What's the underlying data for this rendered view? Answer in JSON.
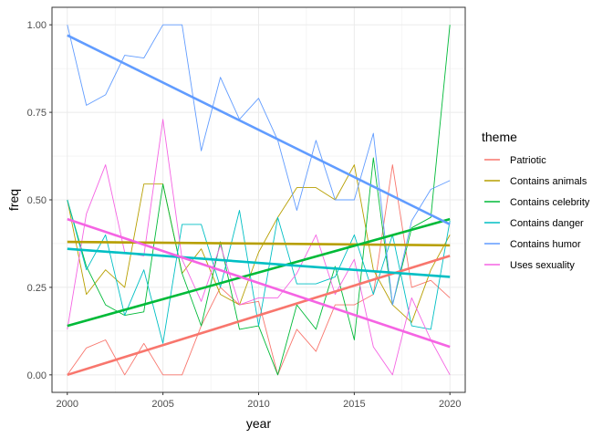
{
  "chart_data": {
    "type": "line",
    "xlabel": "year",
    "ylabel": "freq",
    "xlim": [
      1999.2,
      2020.8
    ],
    "ylim": [
      -0.05,
      1.05
    ],
    "x_ticks": [
      2000,
      2005,
      2010,
      2015,
      2020
    ],
    "x_tick_labels": [
      "2000",
      "2005",
      "2010",
      "2015",
      "2020"
    ],
    "y_ticks": [
      0.0,
      0.25,
      0.5,
      0.75,
      1.0
    ],
    "y_tick_labels": [
      "0.00",
      "0.25",
      "0.50",
      "0.75",
      "1.00"
    ],
    "grid": true,
    "legend_title": "theme",
    "legend_position": "right",
    "x": [
      2000,
      2001,
      2002,
      2003,
      2004,
      2005,
      2006,
      2007,
      2008,
      2009,
      2010,
      2011,
      2012,
      2013,
      2014,
      2015,
      2016,
      2017,
      2018,
      2019,
      2020
    ],
    "series": [
      {
        "name": "Patriotic",
        "color": "#F8766D",
        "values": [
          0.0,
          0.077,
          0.1,
          0.0,
          0.09,
          0.0,
          0.0,
          0.14,
          0.25,
          0.2,
          0.21,
          0.0,
          0.13,
          0.067,
          0.2,
          0.2,
          0.23,
          0.6,
          0.25,
          0.27,
          0.22
        ],
        "trend": [
          0.0,
          0.34
        ]
      },
      {
        "name": "Contains animals",
        "color": "#B79F00",
        "values": [
          0.5,
          0.23,
          0.3,
          0.25,
          0.545,
          0.545,
          0.29,
          0.36,
          0.23,
          0.2,
          0.35,
          0.45,
          0.535,
          0.535,
          0.5,
          0.6,
          0.3,
          0.2,
          0.15,
          0.3,
          0.4
        ],
        "trend": [
          0.38,
          0.37
        ]
      },
      {
        "name": "Contains celebrity",
        "color": "#00BA38",
        "values": [
          0.5,
          0.31,
          0.2,
          0.17,
          0.18,
          0.545,
          0.29,
          0.14,
          0.38,
          0.13,
          0.14,
          0.0,
          0.2,
          0.13,
          0.31,
          0.1,
          0.62,
          0.2,
          0.42,
          0.45,
          1.0
        ],
        "trend": [
          0.14,
          0.445
        ]
      },
      {
        "name": "Contains danger",
        "color": "#00BFC4",
        "values": [
          0.5,
          0.3,
          0.4,
          0.17,
          0.3,
          0.09,
          0.43,
          0.43,
          0.25,
          0.47,
          0.14,
          0.45,
          0.26,
          0.26,
          0.28,
          0.4,
          0.23,
          0.4,
          0.14,
          0.13,
          0.44
        ],
        "trend": [
          0.36,
          0.28
        ]
      },
      {
        "name": "Contains humor",
        "color": "#619CFF",
        "values": [
          1.0,
          0.77,
          0.8,
          0.913,
          0.905,
          1.0,
          1.0,
          0.64,
          0.85,
          0.73,
          0.79,
          0.67,
          0.47,
          0.67,
          0.5,
          0.5,
          0.69,
          0.2,
          0.44,
          0.53,
          0.555
        ],
        "trend": [
          0.97,
          0.43
        ]
      },
      {
        "name": "Uses sexuality",
        "color": "#F564E3",
        "values": [
          0.13,
          0.46,
          0.6,
          0.35,
          0.34,
          0.73,
          0.33,
          0.21,
          0.37,
          0.2,
          0.22,
          0.22,
          0.29,
          0.4,
          0.23,
          0.33,
          0.08,
          0.0,
          0.22,
          0.1,
          0.0
        ],
        "trend": [
          0.445,
          0.08
        ]
      }
    ]
  }
}
